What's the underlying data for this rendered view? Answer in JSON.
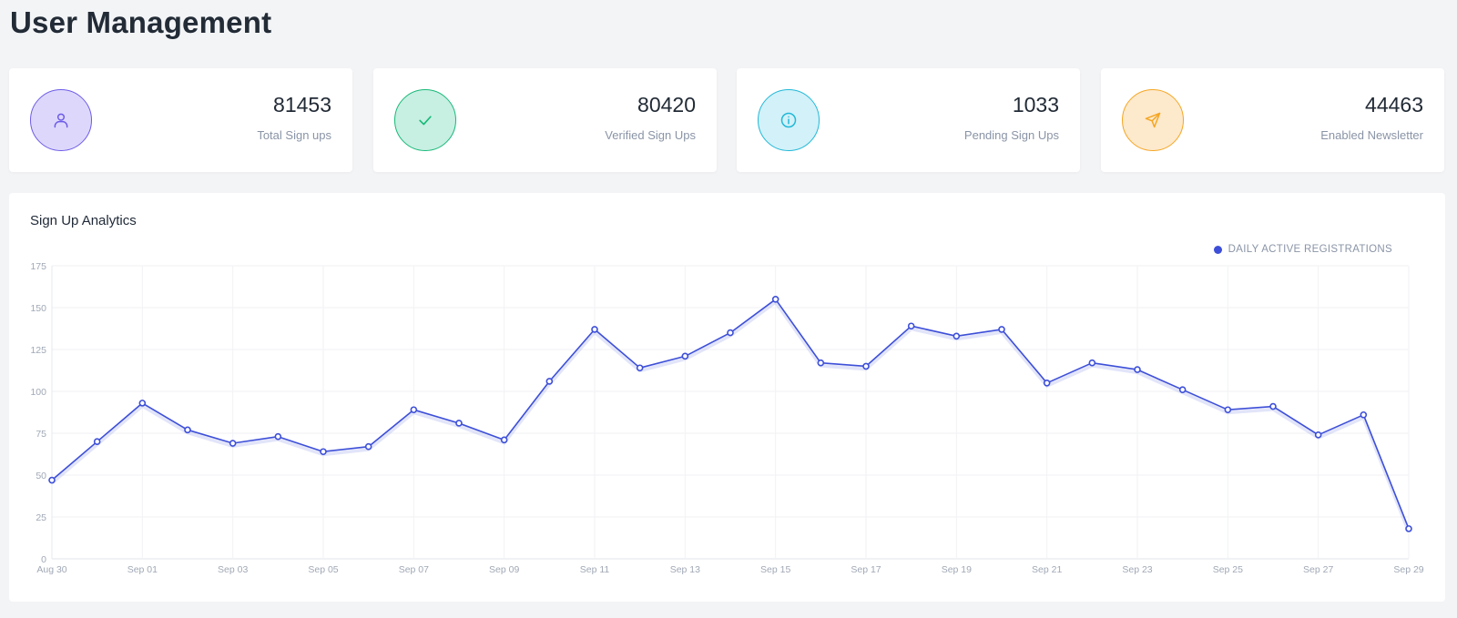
{
  "page": {
    "title": "User Management"
  },
  "stats": [
    {
      "value": "81453",
      "label": "Total Sign ups",
      "icon": "user-icon",
      "color": "#6d5ce8",
      "bg": "#ddd8fb"
    },
    {
      "value": "80420",
      "label": "Verified Sign Ups",
      "icon": "check-icon",
      "color": "#17b978",
      "bg": "#c7efe2"
    },
    {
      "value": "1033",
      "label": "Pending Sign Ups",
      "icon": "info-icon",
      "color": "#22b8d8",
      "bg": "#d2f1f8"
    },
    {
      "value": "44463",
      "label": "Enabled Newsletter",
      "icon": "send-icon",
      "color": "#f5a623",
      "bg": "#fde9cc"
    }
  ],
  "chart_card": {
    "title": "Sign Up Analytics"
  },
  "chart_data": {
    "type": "line",
    "x": [
      "Aug 30",
      "Aug 31",
      "Sep 01",
      "Sep 02",
      "Sep 03",
      "Sep 04",
      "Sep 05",
      "Sep 06",
      "Sep 07",
      "Sep 08",
      "Sep 09",
      "Sep 10",
      "Sep 11",
      "Sep 12",
      "Sep 13",
      "Sep 14",
      "Sep 15",
      "Sep 16",
      "Sep 17",
      "Sep 18",
      "Sep 19",
      "Sep 20",
      "Sep 21",
      "Sep 22",
      "Sep 23",
      "Sep 24",
      "Sep 25",
      "Sep 26",
      "Sep 27",
      "Sep 28",
      "Sep 29"
    ],
    "x_tick_labels": [
      "Aug 30",
      "Sep 01",
      "Sep 03",
      "Sep 05",
      "Sep 07",
      "Sep 09",
      "Sep 11",
      "Sep 13",
      "Sep 15",
      "Sep 17",
      "Sep 19",
      "Sep 21",
      "Sep 23",
      "Sep 25",
      "Sep 27",
      "Sep 29"
    ],
    "y_ticks": [
      0,
      25,
      50,
      75,
      100,
      125,
      150,
      175
    ],
    "ylim": [
      0,
      175
    ],
    "series": [
      {
        "name": "DAILY ACTIVE REGISTRATIONS",
        "color": "#3d4fd8",
        "values": [
          47,
          70,
          93,
          77,
          69,
          73,
          64,
          67,
          89,
          81,
          71,
          106,
          137,
          114,
          121,
          135,
          155,
          117,
          115,
          139,
          133,
          137,
          105,
          117,
          113,
          101,
          89,
          91,
          74,
          86,
          18
        ]
      }
    ],
    "legend_position": "top-right",
    "grid": true
  }
}
